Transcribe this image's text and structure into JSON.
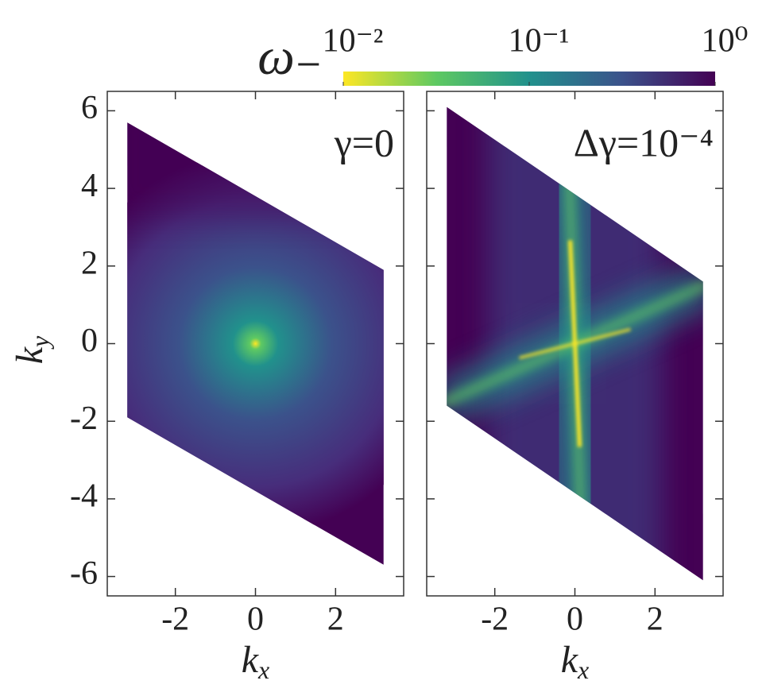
{
  "colorbar": {
    "label": "ω₋",
    "scale": "log",
    "lim": [
      0.01,
      1
    ],
    "ticks": [
      {
        "value": 0.01,
        "label": "10⁻²"
      },
      {
        "value": 0.1,
        "label": "10⁻¹"
      },
      {
        "value": 1,
        "label": "10⁰"
      }
    ],
    "colors": [
      "#fde725",
      "#5ec962",
      "#21918c",
      "#3b528b",
      "#440154"
    ]
  },
  "chart_data": [
    {
      "type": "heatmap",
      "annotation": "γ=0",
      "xlabel": [
        "k",
        "x"
      ],
      "ylabel": [
        "k",
        "y"
      ],
      "xlim": [
        -3.7,
        3.7
      ],
      "ylim": [
        -6.5,
        6.5
      ],
      "xticks": [
        -2,
        0,
        2
      ],
      "yticks": [
        -6,
        -4,
        -2,
        0,
        2,
        4,
        6
      ],
      "show_ytick_labels": true,
      "pattern": "point",
      "region": {
        "x": [
          -3.2,
          3.2,
          3.2,
          -3.2
        ],
        "y": [
          5.7,
          1.9,
          -5.7,
          -1.9
        ]
      }
    },
    {
      "type": "heatmap",
      "annotation": "Δγ=10⁻⁴",
      "xlabel": [
        "k",
        "x"
      ],
      "xlim": [
        -3.7,
        3.7
      ],
      "ylim": [
        -6.5,
        6.5
      ],
      "xticks": [
        -2,
        0,
        2
      ],
      "yticks": [
        -6,
        -4,
        -2,
        0,
        2,
        4,
        6
      ],
      "show_ytick_labels": false,
      "pattern": "cross",
      "region": {
        "x": [
          -3.2,
          3.2,
          3.2,
          -3.2
        ],
        "y": [
          6.1,
          1.6,
          -6.1,
          -1.6
        ]
      }
    }
  ]
}
